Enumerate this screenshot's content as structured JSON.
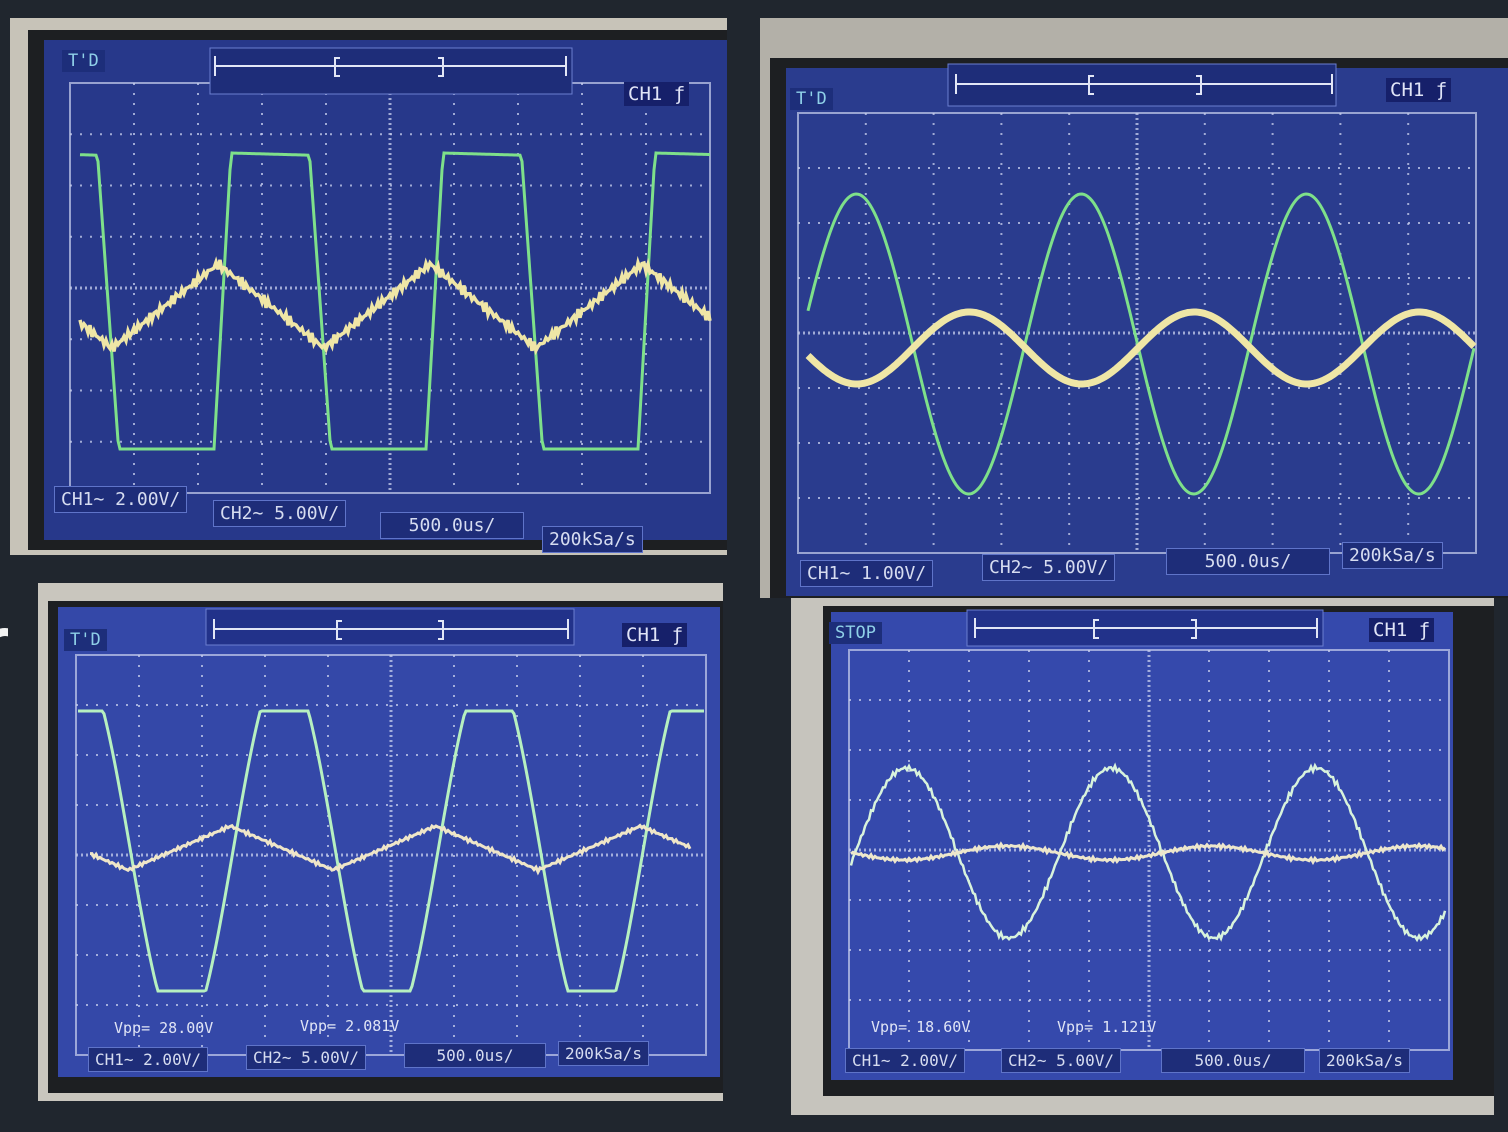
{
  "panels": [
    {
      "id": "top-left",
      "status": "T'D",
      "trigger": "CH1",
      "trigger_slope": "ƒ",
      "ch1": "CH1∼ 2.00V/",
      "ch2": "CH2∼ 5.00V/",
      "timebase": "500.0us/",
      "sample_rate": "200kSa/s",
      "vpp1": "",
      "vpp2": "",
      "green_wave": "trapezoid",
      "yellow_wave": "triangle-noisy"
    },
    {
      "id": "top-right",
      "status": "T'D",
      "trigger": "CH1",
      "trigger_slope": "ƒ",
      "ch1": "CH1∼ 1.00V/",
      "ch2": "CH2∼ 5.00V/",
      "timebase": "500.0us/",
      "sample_rate": "200kSa/s",
      "vpp1": "",
      "vpp2": "",
      "green_wave": "sine",
      "yellow_wave": "sine-small"
    },
    {
      "id": "bottom-left",
      "status": "T'D",
      "trigger": "CH1",
      "trigger_slope": "ƒ",
      "ch1": "CH1∼ 2.00V/",
      "ch2": "CH2∼ 5.00V/",
      "timebase": "500.0us/",
      "sample_rate": "200kSa/s",
      "vpp1": "Vpp= 28.00V",
      "vpp2": "Vpp= 2.081V",
      "green_wave": "clipped-sine",
      "yellow_wave": "triangle-small"
    },
    {
      "id": "bottom-right",
      "status": "STOP",
      "trigger": "CH1",
      "trigger_slope": "ƒ",
      "ch1": "CH1∼ 2.00V/",
      "ch2": "CH2∼ 5.00V/",
      "timebase": "500.0us/",
      "sample_rate": "200kSa/s",
      "vpp1": "Vpp= 18.60V",
      "vpp2": "Vpp= 1.121V",
      "green_wave": "sine-noisy",
      "yellow_wave": "sine-tiny"
    }
  ],
  "colors": {
    "background": "#20262e",
    "screen": "#2c3d8c",
    "trace_green": "#7ee08a",
    "trace_yellow": "#efe6a6",
    "grid": "#c9d0ee"
  }
}
